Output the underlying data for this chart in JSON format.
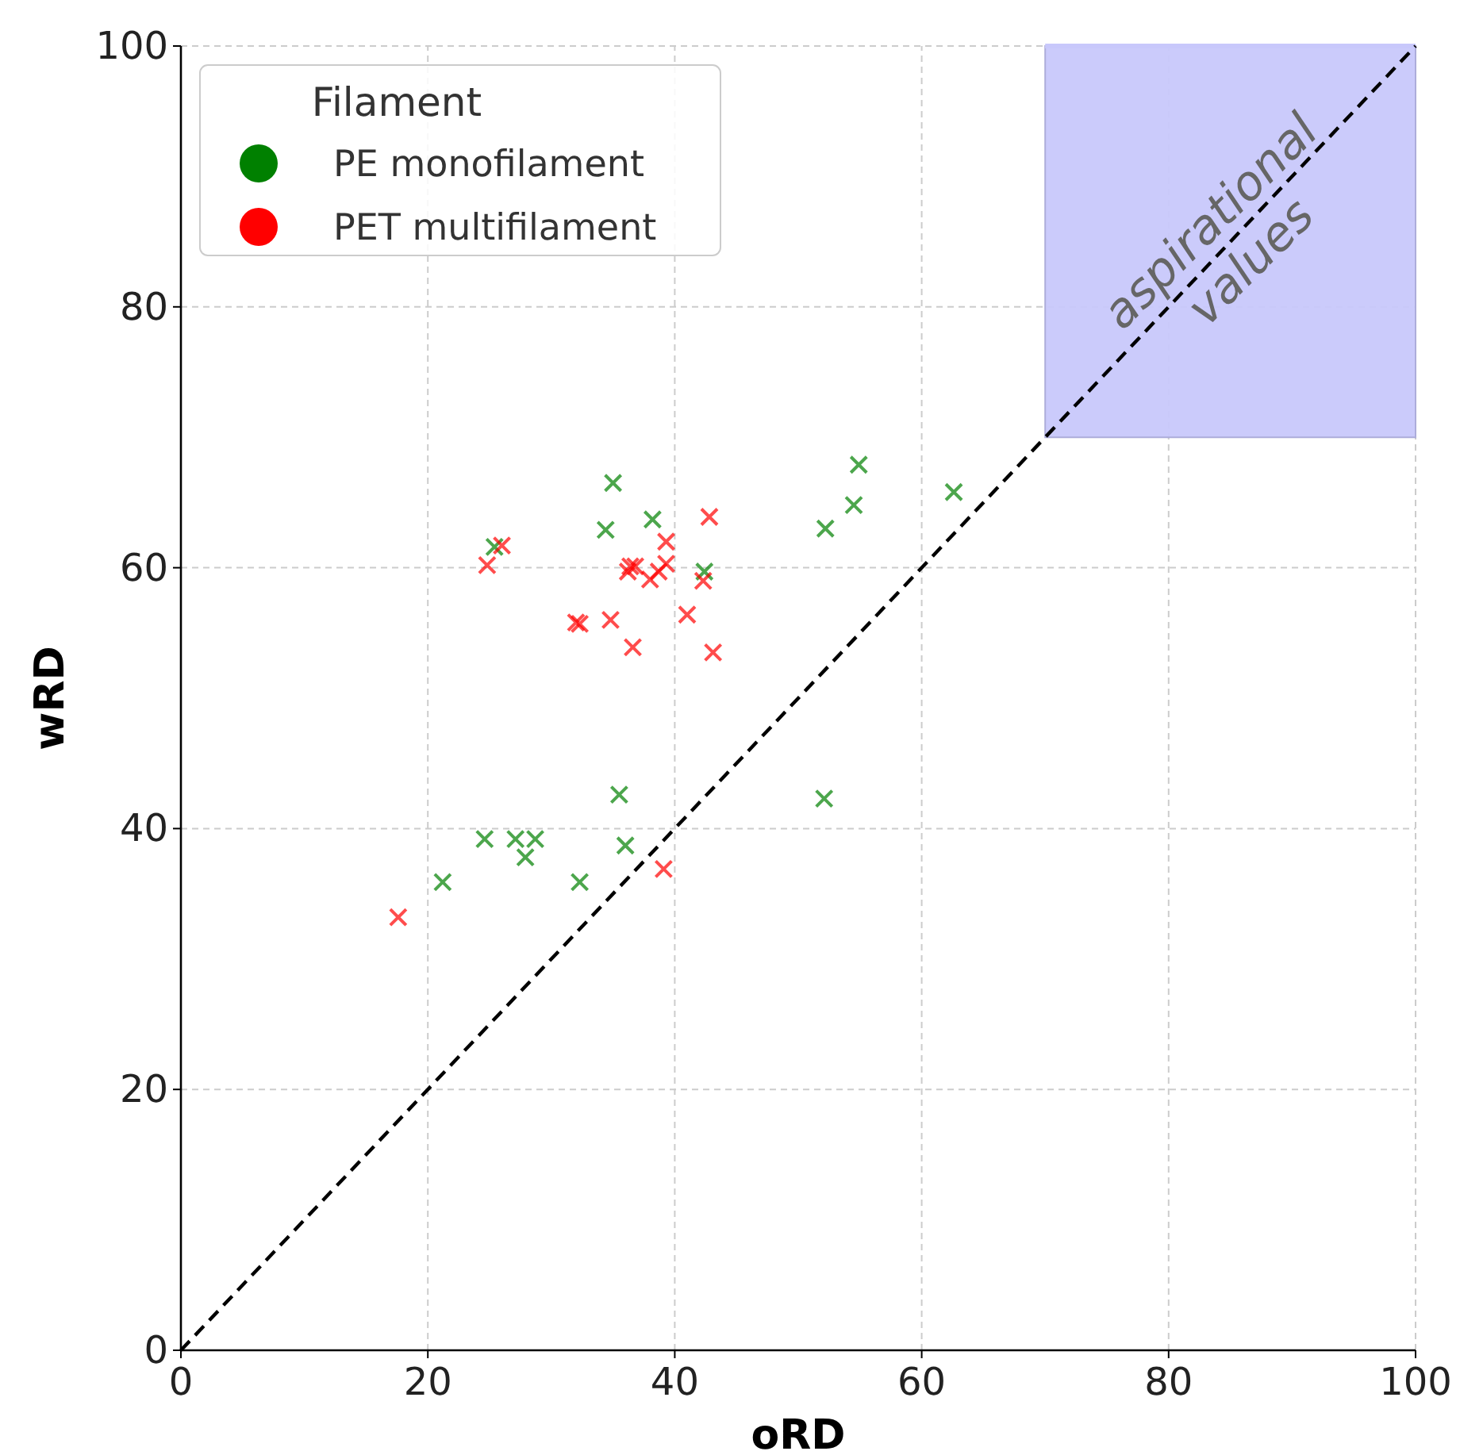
{
  "chart_data": {
    "type": "scatter",
    "xlabel": "oRD",
    "ylabel": "wRD",
    "legend_title": "Filament",
    "legend": "top left",
    "grid": true,
    "marker": "cross",
    "xlim": [
      0,
      100
    ],
    "ylim": [
      0,
      100
    ],
    "xticks": [
      0,
      20,
      40,
      60,
      80,
      100
    ],
    "yticks": [
      0,
      20,
      40,
      60,
      80,
      100
    ],
    "series": [
      {
        "type": "line",
        "color": "#c8c8fb",
        "marker": "none",
        "x": [
          70,
          100
        ],
        "lower": [
          70,
          70
        ],
        "upper": [
          100,
          100
        ],
        "values": [
          100,
          100
        ]
      },
      {
        "type": "line",
        "color": "#000000",
        "line_style": "dashed",
        "marker": "none",
        "x": [
          0,
          100
        ],
        "values": [
          0,
          100
        ]
      },
      {
        "name": "PE monofilament",
        "color": "#008000",
        "x": [
          25.4,
          35.0,
          34.4,
          38.2,
          42.4,
          54.9,
          54.5,
          52.2,
          62.6,
          24.6,
          21.2,
          27.1,
          28.7,
          27.9,
          32.3,
          35.5,
          36.0,
          52.1
        ],
        "values": [
          61.6,
          66.5,
          62.9,
          63.7,
          59.7,
          67.9,
          64.8,
          63.0,
          65.8,
          39.2,
          35.9,
          39.2,
          39.2,
          37.8,
          35.9,
          42.6,
          38.7,
          42.3
        ]
      },
      {
        "name": "PET multifilament",
        "color": "#ff0000",
        "x": [
          17.6,
          24.8,
          26.0,
          32.0,
          32.3,
          34.8,
          36.6,
          36.4,
          36.8,
          36.2,
          38.0,
          38.7,
          39.3,
          39.3,
          41.0,
          42.3,
          42.8,
          43.1,
          39.1
        ],
        "values": [
          33.2,
          60.2,
          61.7,
          55.8,
          55.7,
          56.0,
          53.9,
          60.1,
          60.1,
          59.7,
          59.1,
          59.7,
          60.3,
          62.0,
          56.4,
          59.0,
          63.9,
          53.5,
          36.9
        ]
      }
    ],
    "annotations": [
      {
        "text": "aspirational values",
        "x": 85,
        "y": 85
      }
    ]
  }
}
